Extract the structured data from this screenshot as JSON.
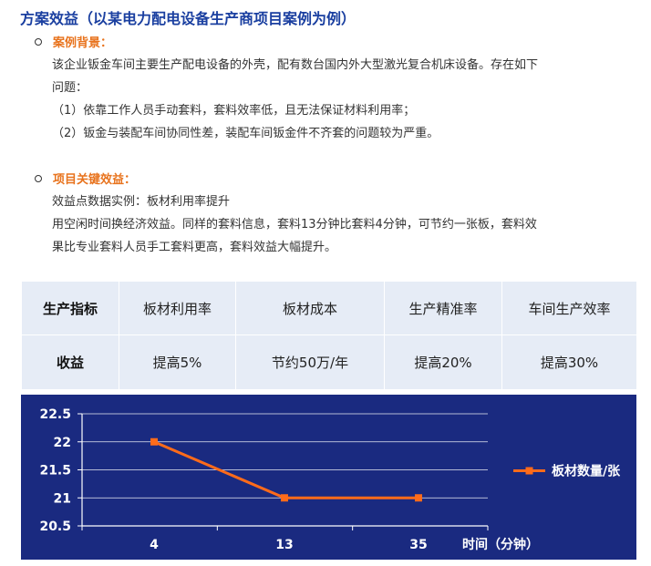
{
  "title": "方案效益（以某电力配电设备生产商项目案例为例）",
  "section1": {
    "heading": "案例背景：",
    "lines": [
      "该企业钣金车间主要生产配电设备的外壳，配有数台国内外大型激光复合机床设备。存在如下",
      "问题：",
      "（1）依靠工作人员手动套料，套料效率低，且无法保证材料利用率；",
      "（2）钣金与装配车间协同性差，装配车间钣金件不齐套的问题较为严重。"
    ]
  },
  "section2": {
    "heading": "项目关键效益：",
    "lines": [
      "效益点数据实例：板材利用率提升",
      "用空闲时间换经济效益。同样的套料信息，套料13分钟比套料4分钟，可节约一张板，套料效",
      "果比专业套料人员手工套料更高，套料效益大幅提升。"
    ]
  },
  "benefit_table": {
    "row1": [
      "生产指标",
      "板材利用率",
      "板材成本",
      "生产精准率",
      "车间生产效率"
    ],
    "row2": [
      "收益",
      "提高5%",
      "节约50万/年",
      "提高20%",
      "提高30%"
    ]
  },
  "colors": {
    "title": "#1a3fa0",
    "section_heading": "#e8731d",
    "chart_bg": "#1a2a80",
    "series_line": "#ff6b1a",
    "table_header": "#a7c7e8",
    "table_cell": "#e6ecf6"
  },
  "chart_data": {
    "type": "line",
    "x": [
      "4",
      "13",
      "35"
    ],
    "series": [
      {
        "name": "板材数量/张",
        "values": [
          22,
          21,
          21
        ]
      }
    ],
    "xlabel": "时间（分钟）",
    "ylabel": "",
    "ylim": [
      20.5,
      22.5
    ],
    "yticks": [
      "20.5",
      "21",
      "21.5",
      "22",
      "22.5"
    ],
    "grid": true,
    "legend": "right"
  }
}
